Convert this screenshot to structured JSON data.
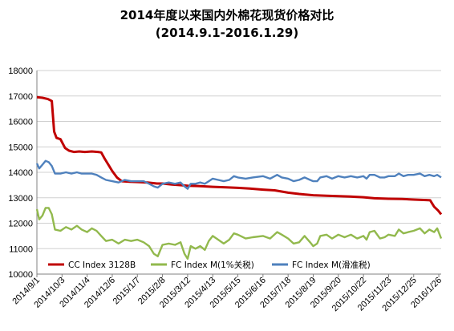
{
  "chart_data": {
    "type": "line",
    "title": "2014年度以来国内外棉花现货价格对比",
    "subtitle": "(2014.9.1-2016.1.29)",
    "xlabel": "",
    "ylabel": "",
    "ylim": [
      10000,
      18000
    ],
    "yticks": [
      10000,
      11000,
      12000,
      13000,
      14000,
      15000,
      16000,
      17000,
      18000
    ],
    "x_tick_labels": [
      "2014/9/1",
      "2014/10/3",
      "2014/11/4",
      "2014/12/6",
      "2015/1/7",
      "2015/2/8",
      "2015/3/12",
      "2015/4/13",
      "2015/5/15",
      "2015/6/16",
      "2015/7/18",
      "2015/8/19",
      "2015/9/20",
      "2015/10/22",
      "2015/11/23",
      "2015/12/25",
      "2016/1/26"
    ],
    "x_range": [
      "2014/9/1",
      "2016/1/29"
    ],
    "grid": "horizontal",
    "legend_position": "bottom",
    "series": [
      {
        "name": "CC Index 3128B",
        "color": "#c00000",
        "points": [
          [
            "2014/9/1",
            16950
          ],
          [
            "2014/9/8",
            16930
          ],
          [
            "2014/9/15",
            16880
          ],
          [
            "2014/9/20",
            16800
          ],
          [
            "2014/9/23",
            15600
          ],
          [
            "2014/9/26",
            15350
          ],
          [
            "2014/10/1",
            15300
          ],
          [
            "2014/10/7",
            14950
          ],
          [
            "2014/10/12",
            14850
          ],
          [
            "2014/10/18",
            14800
          ],
          [
            "2014/10/25",
            14820
          ],
          [
            "2014/11/1",
            14800
          ],
          [
            "2014/11/10",
            14820
          ],
          [
            "2014/11/18",
            14800
          ],
          [
            "2014/11/22",
            14780
          ],
          [
            "2014/11/26",
            14550
          ],
          [
            "2014/12/1",
            14300
          ],
          [
            "2014/12/6",
            14050
          ],
          [
            "2014/12/12",
            13800
          ],
          [
            "2014/12/18",
            13650
          ],
          [
            "2014/12/28",
            13630
          ],
          [
            "2015/1/7",
            13620
          ],
          [
            "2015/1/20",
            13600
          ],
          [
            "2015/2/1",
            13560
          ],
          [
            "2015/2/8",
            13560
          ],
          [
            "2015/2/20",
            13520
          ],
          [
            "2015/3/1",
            13500
          ],
          [
            "2015/3/12",
            13470
          ],
          [
            "2015/3/25",
            13460
          ],
          [
            "2015/4/13",
            13430
          ],
          [
            "2015/4/30",
            13410
          ],
          [
            "2015/5/15",
            13390
          ],
          [
            "2015/5/30",
            13360
          ],
          [
            "2015/6/16",
            13320
          ],
          [
            "2015/7/1",
            13290
          ],
          [
            "2015/7/18",
            13200
          ],
          [
            "2015/8/1",
            13150
          ],
          [
            "2015/8/19",
            13100
          ],
          [
            "2015/9/5",
            13080
          ],
          [
            "2015/9/20",
            13060
          ],
          [
            "2015/10/5",
            13050
          ],
          [
            "2015/10/22",
            13020
          ],
          [
            "2015/11/5",
            12980
          ],
          [
            "2015/11/23",
            12960
          ],
          [
            "2015/12/10",
            12950
          ],
          [
            "2015/12/25",
            12930
          ],
          [
            "2016/1/10",
            12910
          ],
          [
            "2016/1/15",
            12900
          ],
          [
            "2016/1/20",
            12650
          ],
          [
            "2016/1/25",
            12500
          ],
          [
            "2016/1/29",
            12350
          ]
        ]
      },
      {
        "name": "FC Index M(1%关税)",
        "color": "#92b94d",
        "points": [
          [
            "2014/9/1",
            12550
          ],
          [
            "2014/9/4",
            12150
          ],
          [
            "2014/9/8",
            12300
          ],
          [
            "2014/9/12",
            12600
          ],
          [
            "2014/9/16",
            12600
          ],
          [
            "2014/9/20",
            12350
          ],
          [
            "2014/9/24",
            11750
          ],
          [
            "2014/10/1",
            11700
          ],
          [
            "2014/10/8",
            11850
          ],
          [
            "2014/10/15",
            11750
          ],
          [
            "2014/10/22",
            11900
          ],
          [
            "2014/10/28",
            11750
          ],
          [
            "2014/11/4",
            11650
          ],
          [
            "2014/11/10",
            11800
          ],
          [
            "2014/11/16",
            11700
          ],
          [
            "2014/11/22",
            11500
          ],
          [
            "2014/11/28",
            11300
          ],
          [
            "2014/12/6",
            11350
          ],
          [
            "2014/12/14",
            11200
          ],
          [
            "2014/12/22",
            11350
          ],
          [
            "2014/12/30",
            11300
          ],
          [
            "2015/1/7",
            11350
          ],
          [
            "2015/1/15",
            11250
          ],
          [
            "2015/1/22",
            11100
          ],
          [
            "2015/1/28",
            10800
          ],
          [
            "2015/2/2",
            10700
          ],
          [
            "2015/2/8",
            11150
          ],
          [
            "2015/2/16",
            11200
          ],
          [
            "2015/2/24",
            11150
          ],
          [
            "2015/3/3",
            11250
          ],
          [
            "2015/3/8",
            10800
          ],
          [
            "2015/3/12",
            10600
          ],
          [
            "2015/3/16",
            11100
          ],
          [
            "2015/3/22",
            11000
          ],
          [
            "2015/3/28",
            11100
          ],
          [
            "2015/4/3",
            10950
          ],
          [
            "2015/4/8",
            11300
          ],
          [
            "2015/4/13",
            11500
          ],
          [
            "2015/4/20",
            11350
          ],
          [
            "2015/4/27",
            11200
          ],
          [
            "2015/5/4",
            11350
          ],
          [
            "2015/5/10",
            11600
          ],
          [
            "2015/5/15",
            11550
          ],
          [
            "2015/5/25",
            11400
          ],
          [
            "2015/6/3",
            11450
          ],
          [
            "2015/6/16",
            11500
          ],
          [
            "2015/6/25",
            11400
          ],
          [
            "2015/7/4",
            11650
          ],
          [
            "2015/7/10",
            11550
          ],
          [
            "2015/7/18",
            11400
          ],
          [
            "2015/7/25",
            11200
          ],
          [
            "2015/8/1",
            11250
          ],
          [
            "2015/8/8",
            11500
          ],
          [
            "2015/8/15",
            11250
          ],
          [
            "2015/8/19",
            11100
          ],
          [
            "2015/8/24",
            11200
          ],
          [
            "2015/8/28",
            11500
          ],
          [
            "2015/9/5",
            11550
          ],
          [
            "2015/9/12",
            11400
          ],
          [
            "2015/9/20",
            11550
          ],
          [
            "2015/9/28",
            11450
          ],
          [
            "2015/10/6",
            11550
          ],
          [
            "2015/10/14",
            11400
          ],
          [
            "2015/10/22",
            11500
          ],
          [
            "2015/10/26",
            11350
          ],
          [
            "2015/10/30",
            11650
          ],
          [
            "2015/11/5",
            11700
          ],
          [
            "2015/11/12",
            11400
          ],
          [
            "2015/11/18",
            11450
          ],
          [
            "2015/11/23",
            11550
          ],
          [
            "2015/12/1",
            11500
          ],
          [
            "2015/12/6",
            11750
          ],
          [
            "2015/12/12",
            11600
          ],
          [
            "2015/12/18",
            11650
          ],
          [
            "2015/12/25",
            11700
          ],
          [
            "2016/1/2",
            11800
          ],
          [
            "2016/1/8",
            11600
          ],
          [
            "2016/1/14",
            11750
          ],
          [
            "2016/1/20",
            11650
          ],
          [
            "2016/1/24",
            11800
          ],
          [
            "2016/1/29",
            11400
          ]
        ]
      },
      {
        "name": "FC Index M(滑准税)",
        "color": "#4f81bd",
        "points": [
          [
            "2014/9/1",
            14350
          ],
          [
            "2014/9/4",
            14150
          ],
          [
            "2014/9/8",
            14300
          ],
          [
            "2014/9/12",
            14450
          ],
          [
            "2014/9/16",
            14400
          ],
          [
            "2014/9/20",
            14250
          ],
          [
            "2014/9/24",
            13950
          ],
          [
            "2014/10/1",
            13950
          ],
          [
            "2014/10/8",
            14000
          ],
          [
            "2014/10/15",
            13950
          ],
          [
            "2014/10/22",
            14000
          ],
          [
            "2014/10/28",
            13950
          ],
          [
            "2014/11/4",
            13950
          ],
          [
            "2014/11/10",
            13950
          ],
          [
            "2014/11/16",
            13900
          ],
          [
            "2014/11/22",
            13800
          ],
          [
            "2014/11/28",
            13700
          ],
          [
            "2014/12/6",
            13650
          ],
          [
            "2014/12/14",
            13600
          ],
          [
            "2014/12/22",
            13700
          ],
          [
            "2014/12/30",
            13650
          ],
          [
            "2015/1/7",
            13650
          ],
          [
            "2015/1/15",
            13650
          ],
          [
            "2015/1/22",
            13550
          ],
          [
            "2015/1/28",
            13450
          ],
          [
            "2015/2/2",
            13400
          ],
          [
            "2015/2/8",
            13550
          ],
          [
            "2015/2/16",
            13600
          ],
          [
            "2015/2/24",
            13550
          ],
          [
            "2015/3/3",
            13600
          ],
          [
            "2015/3/8",
            13450
          ],
          [
            "2015/3/12",
            13350
          ],
          [
            "2015/3/16",
            13550
          ],
          [
            "2015/3/22",
            13550
          ],
          [
            "2015/3/28",
            13600
          ],
          [
            "2015/4/3",
            13550
          ],
          [
            "2015/4/8",
            13650
          ],
          [
            "2015/4/13",
            13750
          ],
          [
            "2015/4/20",
            13700
          ],
          [
            "2015/4/27",
            13650
          ],
          [
            "2015/5/4",
            13700
          ],
          [
            "2015/5/10",
            13850
          ],
          [
            "2015/5/15",
            13800
          ],
          [
            "2015/5/25",
            13750
          ],
          [
            "2015/6/3",
            13800
          ],
          [
            "2015/6/16",
            13850
          ],
          [
            "2015/6/25",
            13750
          ],
          [
            "2015/7/4",
            13900
          ],
          [
            "2015/7/10",
            13800
          ],
          [
            "2015/7/18",
            13750
          ],
          [
            "2015/7/25",
            13650
          ],
          [
            "2015/8/1",
            13700
          ],
          [
            "2015/8/8",
            13800
          ],
          [
            "2015/8/15",
            13700
          ],
          [
            "2015/8/19",
            13650
          ],
          [
            "2015/8/24",
            13650
          ],
          [
            "2015/8/28",
            13800
          ],
          [
            "2015/9/5",
            13850
          ],
          [
            "2015/9/12",
            13750
          ],
          [
            "2015/9/20",
            13850
          ],
          [
            "2015/9/28",
            13800
          ],
          [
            "2015/10/6",
            13850
          ],
          [
            "2015/10/14",
            13800
          ],
          [
            "2015/10/22",
            13850
          ],
          [
            "2015/10/26",
            13750
          ],
          [
            "2015/10/30",
            13900
          ],
          [
            "2015/11/5",
            13900
          ],
          [
            "2015/11/12",
            13800
          ],
          [
            "2015/11/18",
            13800
          ],
          [
            "2015/11/23",
            13850
          ],
          [
            "2015/12/1",
            13850
          ],
          [
            "2015/12/6",
            13950
          ],
          [
            "2015/12/12",
            13850
          ],
          [
            "2015/12/18",
            13900
          ],
          [
            "2015/12/25",
            13900
          ],
          [
            "2016/1/2",
            13950
          ],
          [
            "2016/1/8",
            13850
          ],
          [
            "2016/1/14",
            13900
          ],
          [
            "2016/1/20",
            13850
          ],
          [
            "2016/1/24",
            13900
          ],
          [
            "2016/1/29",
            13800
          ]
        ]
      }
    ]
  }
}
